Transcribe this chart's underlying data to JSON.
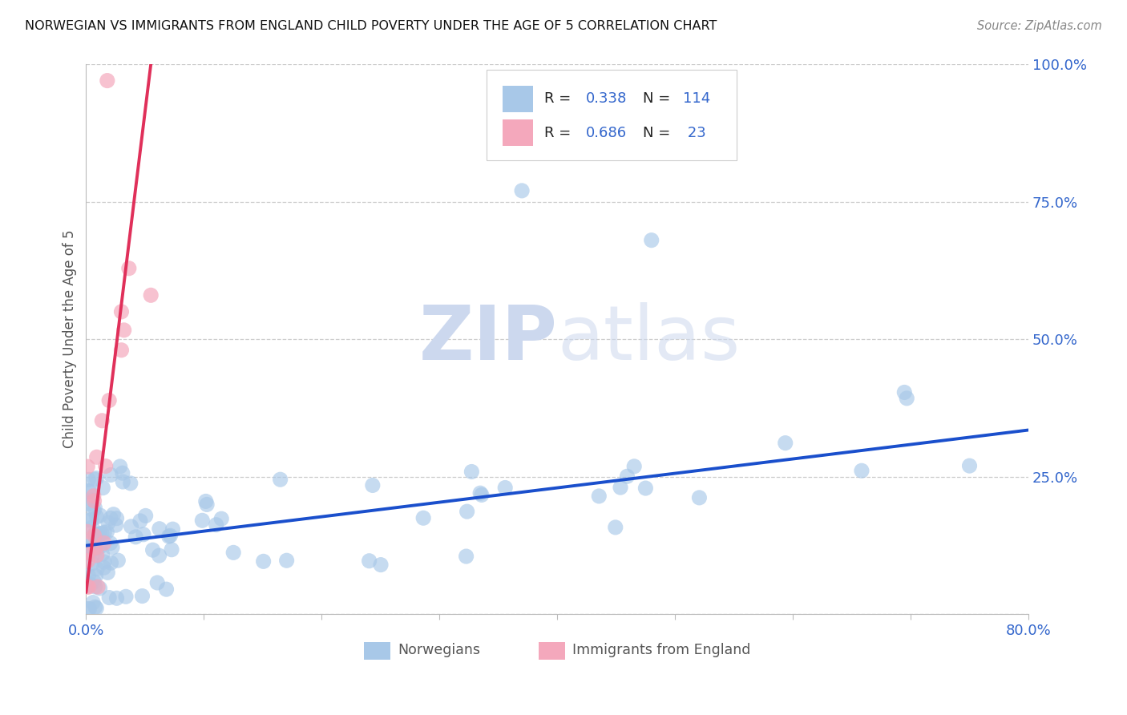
{
  "title": "NORWEGIAN VS IMMIGRANTS FROM ENGLAND CHILD POVERTY UNDER THE AGE OF 5 CORRELATION CHART",
  "source": "Source: ZipAtlas.com",
  "ylabel": "Child Poverty Under the Age of 5",
  "xlim": [
    0.0,
    0.8
  ],
  "ylim": [
    0.0,
    1.0
  ],
  "xticks": [
    0.0,
    0.1,
    0.2,
    0.3,
    0.4,
    0.5,
    0.6,
    0.7,
    0.8
  ],
  "xticklabels": [
    "0.0%",
    "",
    "",
    "",
    "",
    "",
    "",
    "",
    "80.0%"
  ],
  "yticks": [
    0.0,
    0.25,
    0.5,
    0.75,
    1.0
  ],
  "yticklabels": [
    "",
    "25.0%",
    "50.0%",
    "75.0%",
    "100.0%"
  ],
  "color_norwegian": "#a8c8e8",
  "color_england": "#f4a8bc",
  "color_line_norwegian": "#1a4fcc",
  "color_line_england": "#e0305a",
  "color_axis_labels": "#3366cc",
  "watermark_color": "#ccd8ee",
  "nor_line_x0": 0.0,
  "nor_line_y0": 0.125,
  "nor_line_x1": 0.8,
  "nor_line_y1": 0.335,
  "eng_line_x0": 0.0,
  "eng_line_y0": 0.04,
  "eng_line_x1": 0.055,
  "eng_line_y1": 1.0
}
